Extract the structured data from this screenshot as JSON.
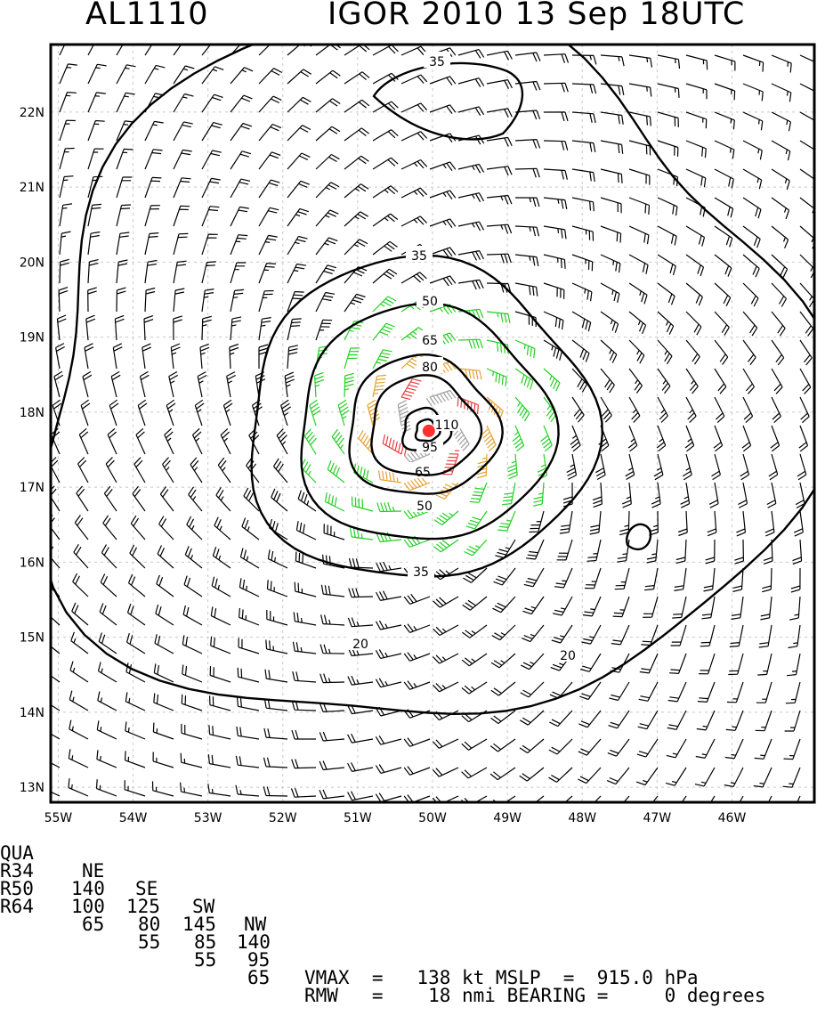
{
  "header": {
    "storm_id": "AL1110",
    "storm_time": "IGOR 2010 13 Sep 18UTC"
  },
  "map": {
    "lon_range": [
      -55.1,
      -44.9
    ],
    "lat_range": [
      12.8,
      22.9
    ],
    "lon_labels": [
      "55W",
      "54W",
      "53W",
      "52W",
      "51W",
      "50W",
      "49W",
      "48W",
      "47W",
      "46W"
    ],
    "lat_labels": [
      "13N",
      "14N",
      "15N",
      "16N",
      "17N",
      "18N",
      "19N",
      "20N",
      "21N",
      "22N"
    ],
    "storm_center": {
      "lon": -50.05,
      "lat": 17.75,
      "marker_color": "#ff3030"
    },
    "barb_colors": {
      "below_34": "#000000",
      "34_to_49": "#22d022",
      "50_to_63": "#e6a030",
      "64_plus": "#e83c3c",
      "core": "#a0a0a0"
    },
    "contours": [
      {
        "label": "20",
        "color": "#000000"
      },
      {
        "label": "35",
        "color": "#000000"
      },
      {
        "label": "50",
        "color": "#000000"
      },
      {
        "label": "65",
        "color": "#000000"
      },
      {
        "label": "80",
        "color": "#000000"
      },
      {
        "label": "95",
        "color": "#000000"
      },
      {
        "label": "110",
        "color": "#000000"
      }
    ]
  },
  "footer": {
    "quadrant_header": [
      "QUA",
      "NE",
      "SE",
      "SW",
      "NW"
    ],
    "r34": [
      "R34",
      "140",
      "125",
      "145",
      "140"
    ],
    "r50": [
      "R50",
      "100",
      "80",
      "85",
      "95"
    ],
    "r64": [
      "R64",
      "65",
      "55",
      "55",
      "65"
    ],
    "vmax_line": "VMAX  =   138 kt MSLP  =  915.0 hPa",
    "rmw_line": "RMW   =    18 nmi BEARING =     0 degrees"
  }
}
